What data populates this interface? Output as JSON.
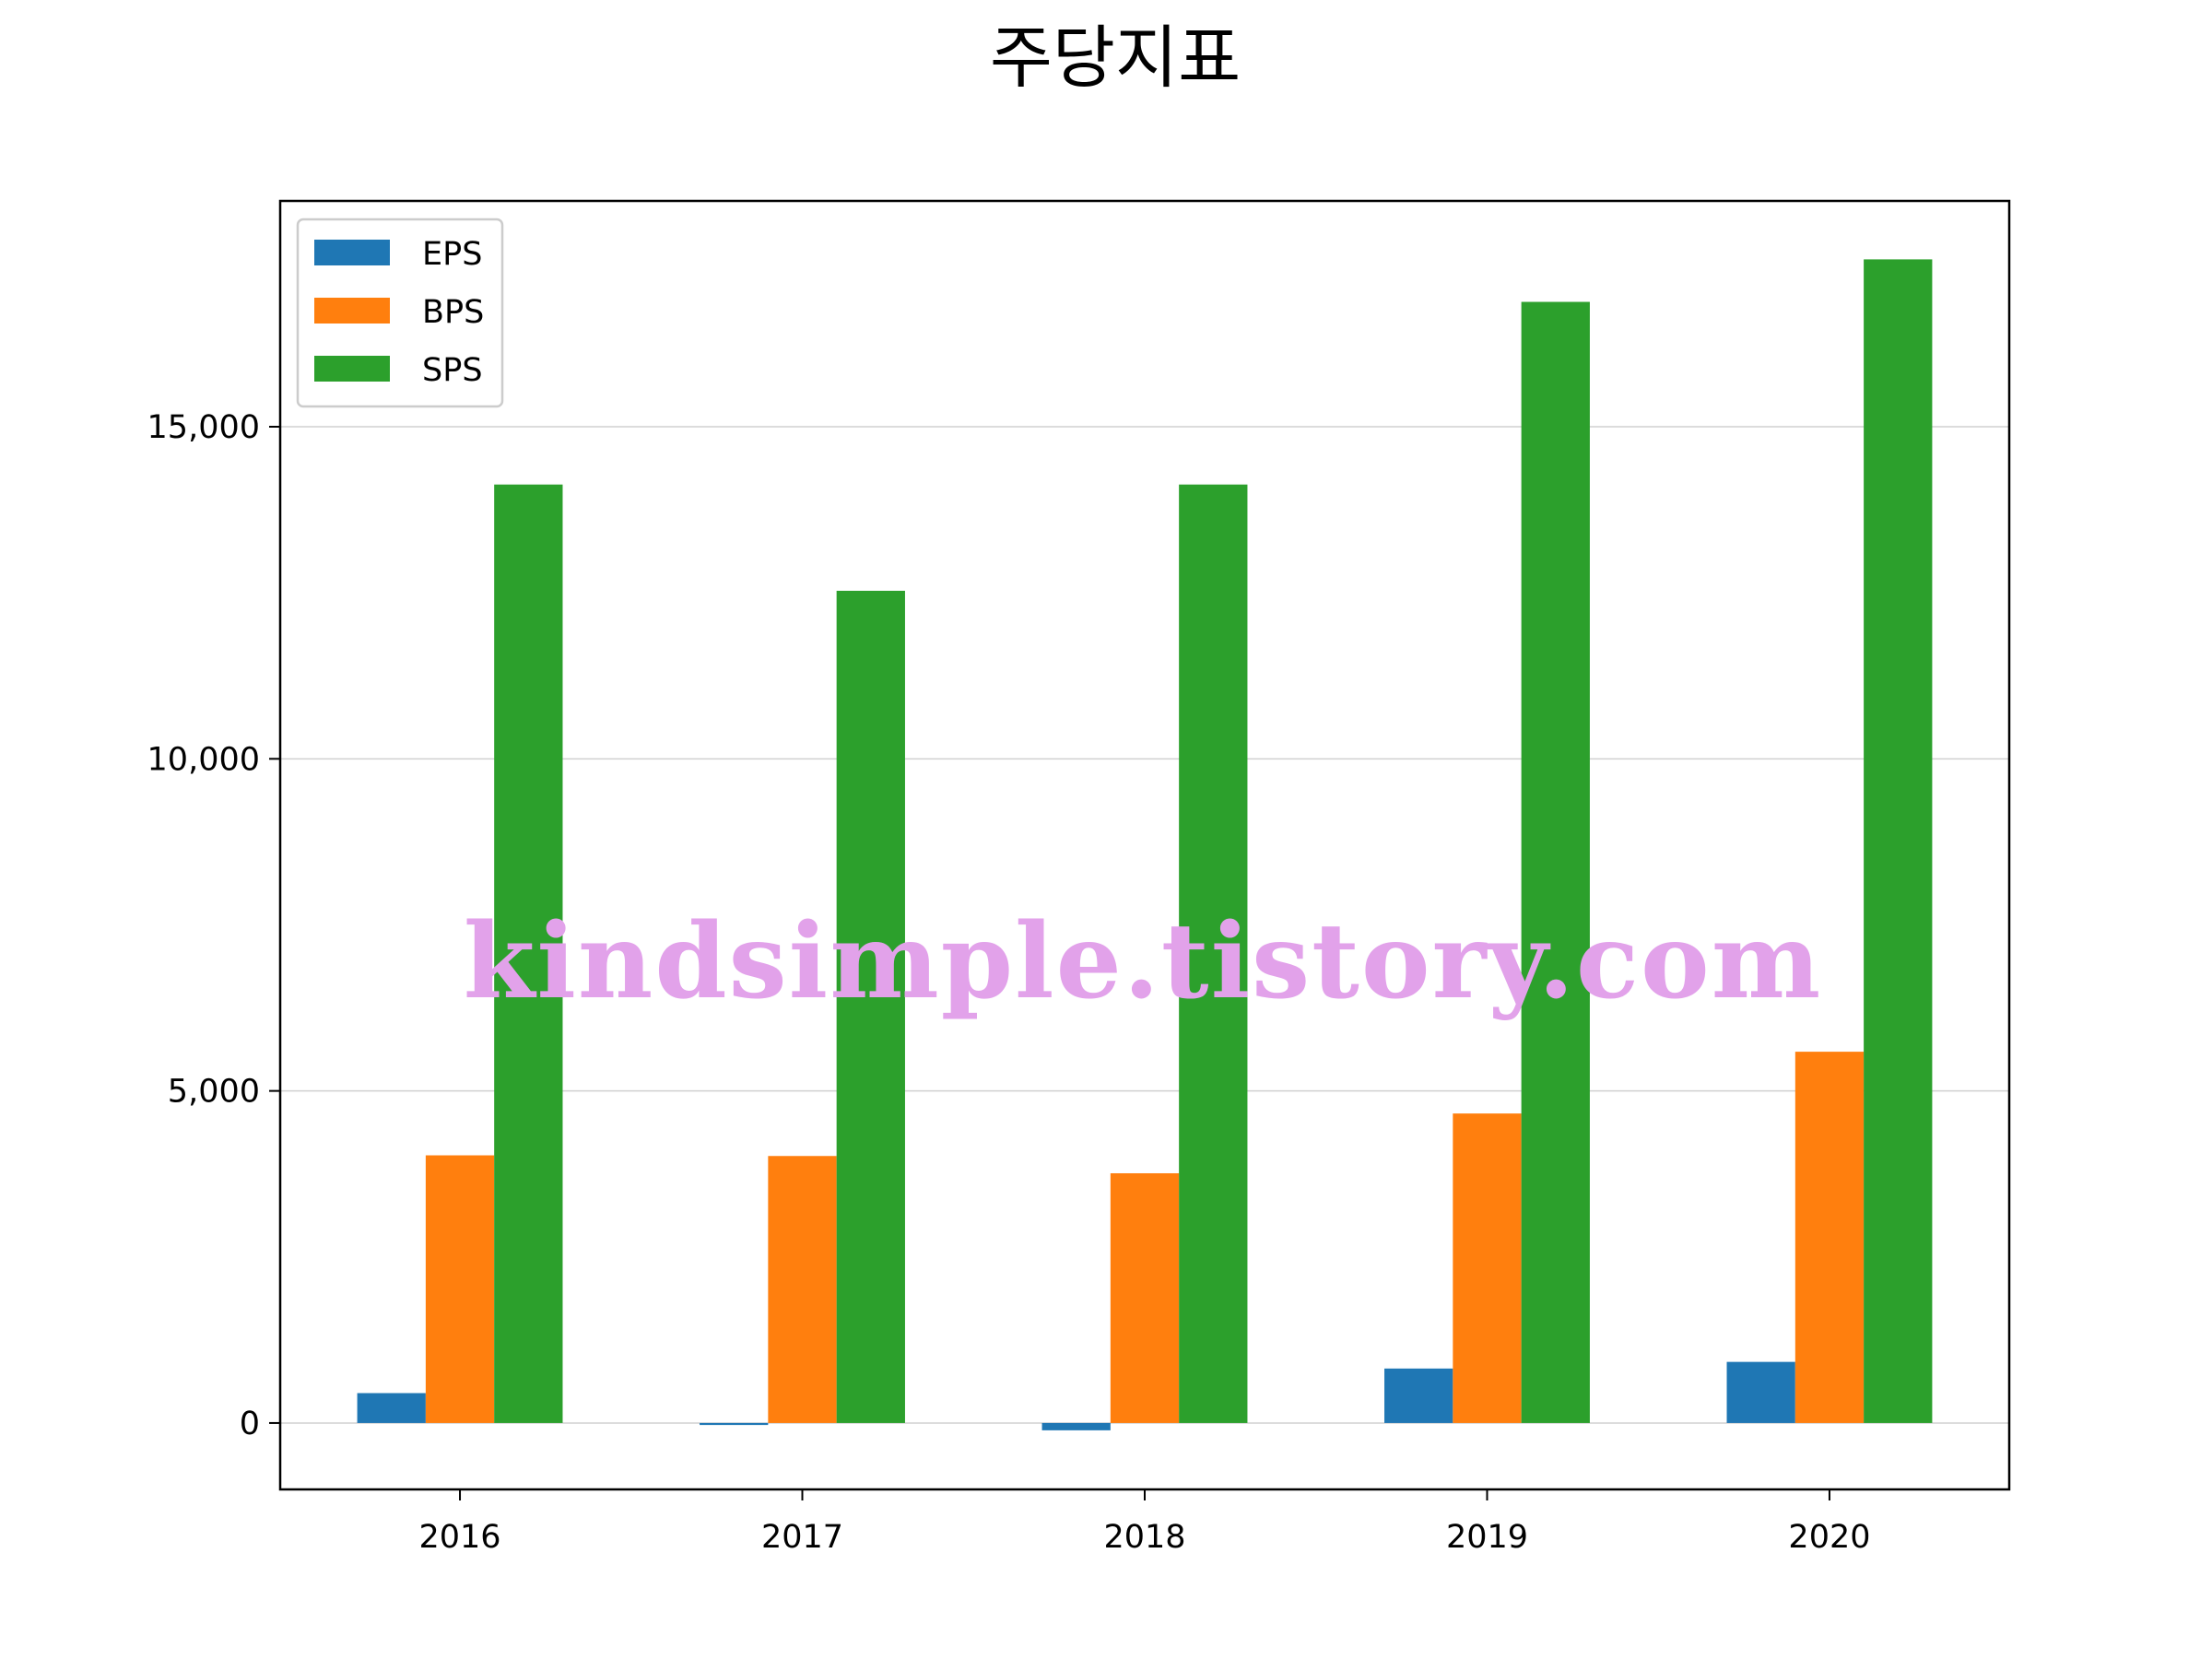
{
  "chart_data": {
    "type": "bar",
    "title": "주당지표",
    "categories": [
      "2016",
      "2017",
      "2018",
      "2019",
      "2020"
    ],
    "series": [
      {
        "name": "EPS",
        "color": "#1f77b4",
        "values": [
          450,
          -30,
          -110,
          820,
          920
        ]
      },
      {
        "name": "BPS",
        "color": "#ff7f0e",
        "values": [
          4030,
          4020,
          3760,
          4660,
          5590
        ]
      },
      {
        "name": "SPS",
        "color": "#2ca02c",
        "values": [
          14130,
          12530,
          14130,
          16880,
          17520
        ]
      }
    ],
    "xlabel": "",
    "ylabel": "",
    "ylim": [
      -1000,
      18400
    ],
    "yticks": [
      0,
      5000,
      10000,
      15000
    ],
    "ytick_labels": [
      "0",
      "5,000",
      "10,000",
      "15,000"
    ],
    "grid": "y",
    "legend": "top-left"
  },
  "watermark": "kindsimple.tistory.com"
}
